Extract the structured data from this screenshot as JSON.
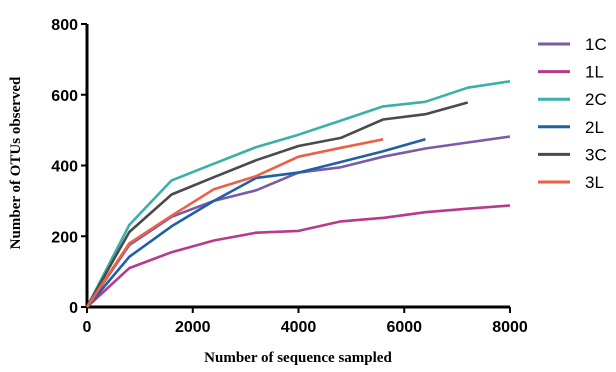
{
  "chart_data": {
    "type": "line",
    "xlabel": "Number of sequence  sampled",
    "ylabel": "Number of OTUs observed",
    "xlim": [
      0,
      8000
    ],
    "ylim": [
      0,
      800
    ],
    "xticks": [
      0,
      2000,
      4000,
      6000,
      8000
    ],
    "yticks": [
      0,
      200,
      400,
      600,
      800
    ],
    "xtick_labels": [
      "0",
      "2000",
      "4000",
      "6000",
      "8000"
    ],
    "ytick_labels": [
      "0",
      "200",
      "400",
      "600",
      "800"
    ],
    "grid": false,
    "legend_position": "right",
    "series": [
      {
        "name": "1C",
        "color": "#7B5BA8",
        "x": [
          0,
          800,
          1600,
          2400,
          3200,
          4000,
          4800,
          5600,
          6400,
          7200,
          8000
        ],
        "y": [
          0,
          175,
          255,
          300,
          330,
          380,
          395,
          425,
          448,
          465,
          482
        ]
      },
      {
        "name": "1L",
        "color": "#B83A8A",
        "x": [
          0,
          800,
          1600,
          2400,
          3200,
          4000,
          4800,
          5600,
          6400,
          7200,
          8000
        ],
        "y": [
          0,
          110,
          155,
          188,
          210,
          215,
          242,
          252,
          268,
          278,
          287
        ]
      },
      {
        "name": "2C",
        "color": "#3AB0A8",
        "x": [
          0,
          800,
          1600,
          2400,
          3200,
          4000,
          4800,
          5600,
          6400,
          7200,
          8000
        ],
        "y": [
          0,
          232,
          358,
          405,
          452,
          487,
          527,
          567,
          580,
          620,
          638
        ]
      },
      {
        "name": "2L",
        "color": "#1F5FA6",
        "x": [
          0,
          800,
          1600,
          2400,
          3200,
          4000,
          4800,
          5600,
          6400
        ],
        "y": [
          0,
          142,
          228,
          300,
          365,
          380,
          410,
          440,
          474
        ]
      },
      {
        "name": "3C",
        "color": "#4A4A4A",
        "x": [
          0,
          800,
          1600,
          2400,
          3200,
          4000,
          4800,
          5600,
          6400,
          7200
        ],
        "y": [
          0,
          212,
          318,
          367,
          415,
          455,
          478,
          530,
          545,
          578
        ]
      },
      {
        "name": "3L",
        "color": "#EE6046",
        "x": [
          0,
          800,
          1600,
          2400,
          3200,
          4000,
          4800,
          5600
        ],
        "y": [
          0,
          180,
          258,
          333,
          370,
          425,
          450,
          474
        ]
      }
    ]
  }
}
